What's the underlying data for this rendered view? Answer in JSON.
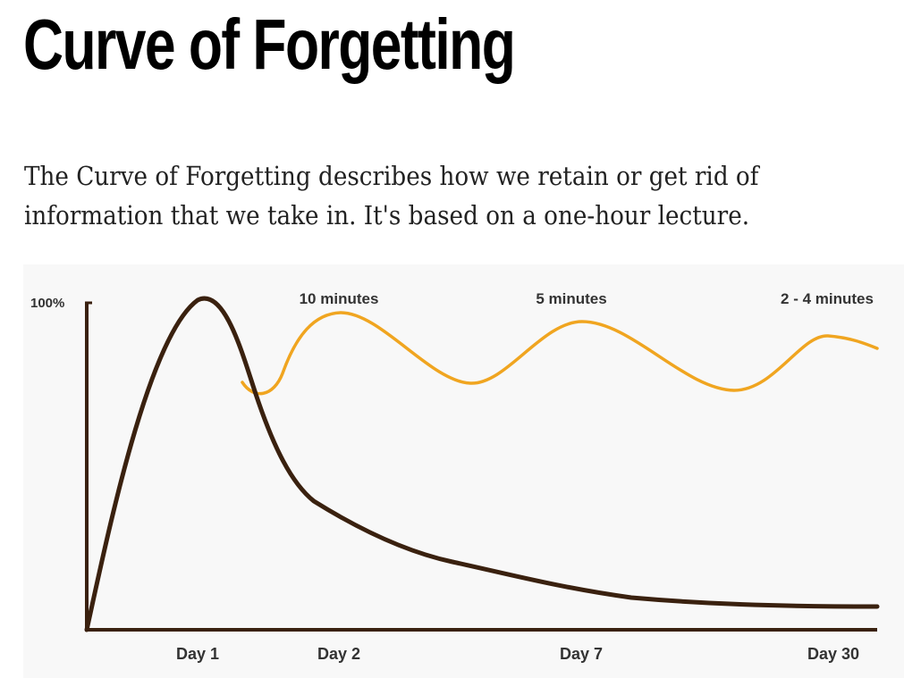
{
  "page": {
    "title": "Curve of Forgetting",
    "intro": "The Curve of Forgetting describes how we retain or get rid of information that we take in. It's based on a one-hour lecture."
  },
  "chart_data": {
    "type": "line",
    "y_axis_label": "100%",
    "x_categories": [
      "Day 1",
      "Day 2",
      "Day 7",
      "Day 30"
    ],
    "grid": false,
    "legend": "none",
    "series": [
      {
        "color": "#3a210f",
        "points": [
          {
            "x": "start",
            "y": 0
          },
          {
            "x": "Day 1",
            "y": 100
          },
          {
            "x": "Day 2",
            "y": 38
          },
          {
            "x": "Day 7",
            "y": 13
          },
          {
            "x": "Day 30",
            "y": 7
          }
        ]
      },
      {
        "color": "#f0a520",
        "points": [
          {
            "x": "Day 1",
            "y": 72
          },
          {
            "x": "Day 2",
            "y": 96
          },
          {
            "x": "Day 7",
            "y": 93
          },
          {
            "x": "Day 30",
            "y": 88
          }
        ]
      }
    ],
    "annotations": [
      {
        "text": "10 minutes",
        "near": "Day 2"
      },
      {
        "text": "5 minutes",
        "near": "Day 7"
      },
      {
        "text": "2 - 4 minutes",
        "near": "Day 30"
      }
    ]
  }
}
